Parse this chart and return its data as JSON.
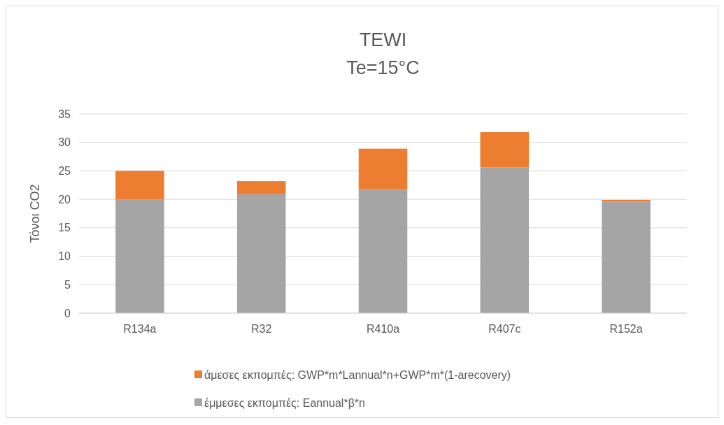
{
  "chart_data": {
    "type": "bar",
    "title": "TEWI",
    "subtitle": "Te=15°C",
    "ylabel": "Τόνοι CO2",
    "stacked": true,
    "categories": [
      "R134a",
      "R32",
      "R410a",
      "R407c",
      "R152a"
    ],
    "series": [
      {
        "name": "έμμεσες εκπομπές: Eannual*β*n",
        "color": "#a5a5a5",
        "values": [
          20.0,
          20.9,
          21.7,
          25.6,
          19.6
        ]
      },
      {
        "name": "άμεσες εκπομπές: GWP*m*Lannual*n+GWP*m*(1-arecovery)",
        "color": "#ed7d31",
        "values": [
          5.0,
          2.3,
          7.2,
          6.2,
          0.3
        ]
      }
    ],
    "ylim": [
      0,
      35
    ],
    "yticks": [
      0,
      5,
      10,
      15,
      20,
      25,
      30,
      35
    ],
    "grid": "y",
    "legend": "bottom"
  }
}
